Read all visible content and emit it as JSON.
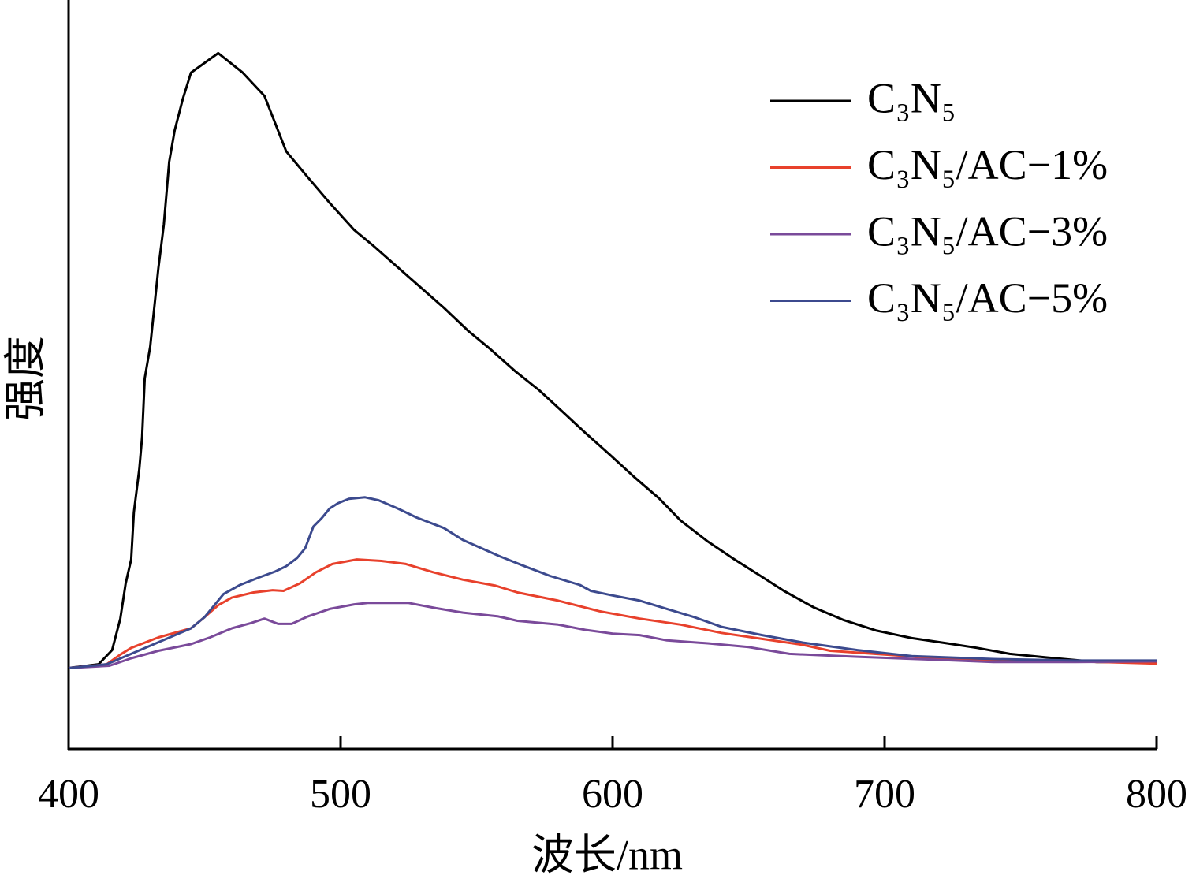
{
  "chart_data": {
    "type": "line",
    "x_label": "波长/nm",
    "y_label": "强度",
    "xlim": [
      400,
      800
    ],
    "xticks": [
      400,
      500,
      600,
      700,
      800
    ],
    "ylim": [
      0,
      100
    ],
    "legend": "upper right",
    "series": [
      {
        "name": "C₃N₅",
        "color": "#000000",
        "x": [
          400,
          411,
          416,
          419,
          421,
          423,
          424,
          426,
          427,
          428,
          430,
          433,
          435,
          437,
          439,
          442,
          445,
          455,
          464,
          472,
          480,
          488,
          496,
          505,
          512,
          522,
          538,
          547,
          555,
          564,
          573,
          582,
          590,
          599,
          608,
          617,
          625,
          635,
          644,
          654,
          663,
          674,
          685,
          697,
          710,
          723,
          734,
          746,
          760,
          778,
          800
        ],
        "values": [
          10.8,
          11.3,
          13.2,
          17.4,
          22.1,
          25.3,
          31.6,
          37.4,
          41.6,
          49.5,
          53.7,
          64.2,
          70.0,
          78.4,
          82.6,
          86.8,
          90.3,
          92.9,
          90.3,
          87.2,
          79.8,
          76.3,
          72.9,
          69.3,
          67.2,
          64.0,
          58.9,
          55.8,
          53.4,
          50.5,
          47.9,
          44.9,
          42.2,
          39.3,
          36.3,
          33.5,
          30.5,
          27.7,
          25.5,
          23.2,
          21.1,
          18.9,
          17.2,
          15.8,
          14.8,
          14.1,
          13.5,
          12.7,
          12.2,
          11.6,
          11.6
        ]
      },
      {
        "name": "C₃N₅/AC−1%",
        "color": "#e8412c",
        "x": [
          400,
          414,
          419,
          423,
          433,
          445,
          450,
          455,
          460,
          468,
          475,
          479,
          485,
          491,
          497,
          506,
          515,
          524,
          534,
          545,
          557,
          565,
          580,
          595,
          610,
          625,
          640,
          655,
          670,
          680,
          700,
          720,
          750,
          780,
          800
        ],
        "values": [
          10.8,
          11.3,
          12.6,
          13.5,
          14.9,
          16.1,
          17.6,
          19.2,
          20.2,
          20.9,
          21.2,
          21.1,
          22.1,
          23.6,
          24.7,
          25.3,
          25.1,
          24.7,
          23.6,
          22.6,
          21.8,
          20.9,
          19.8,
          18.4,
          17.4,
          16.6,
          15.5,
          14.7,
          13.9,
          13.1,
          12.6,
          12.1,
          11.8,
          11.6,
          11.4
        ]
      },
      {
        "name": "C₃N₅/AC−3%",
        "color": "#7a4a9a",
        "x": [
          400,
          415,
          423,
          433,
          445,
          452,
          460,
          467,
          472,
          477,
          482,
          488,
          496,
          505,
          510,
          525,
          535,
          545,
          558,
          565,
          580,
          590,
          600,
          610,
          620,
          635,
          650,
          665,
          690,
          720,
          740,
          770,
          800
        ],
        "values": [
          10.8,
          11.1,
          12.1,
          13.1,
          14.0,
          14.9,
          16.1,
          16.8,
          17.4,
          16.7,
          16.7,
          17.7,
          18.7,
          19.3,
          19.5,
          19.5,
          18.8,
          18.2,
          17.7,
          17.1,
          16.6,
          15.9,
          15.4,
          15.2,
          14.5,
          14.1,
          13.6,
          12.7,
          12.3,
          11.9,
          11.6,
          11.6,
          11.7
        ]
      },
      {
        "name": "C₃N₅/AC−5%",
        "color": "#3c4a8e",
        "x": [
          400,
          414,
          445,
          450,
          457,
          463,
          470,
          476,
          480,
          484,
          487,
          490,
          493,
          496,
          499,
          503,
          509,
          514,
          521,
          528,
          538,
          545,
          558,
          567,
          577,
          588,
          592,
          600,
          610,
          620,
          630,
          640,
          655,
          670,
          690,
          710,
          740,
          770,
          800
        ],
        "values": [
          10.8,
          11.3,
          16.1,
          17.6,
          20.7,
          21.9,
          22.9,
          23.7,
          24.4,
          25.5,
          26.8,
          29.7,
          30.8,
          32.1,
          32.8,
          33.4,
          33.6,
          33.2,
          32.1,
          30.9,
          29.5,
          27.9,
          25.8,
          24.5,
          23.1,
          21.9,
          21.1,
          20.5,
          19.8,
          18.7,
          17.6,
          16.3,
          15.2,
          14.2,
          13.2,
          12.4,
          12.0,
          11.8,
          11.8
        ]
      }
    ]
  }
}
